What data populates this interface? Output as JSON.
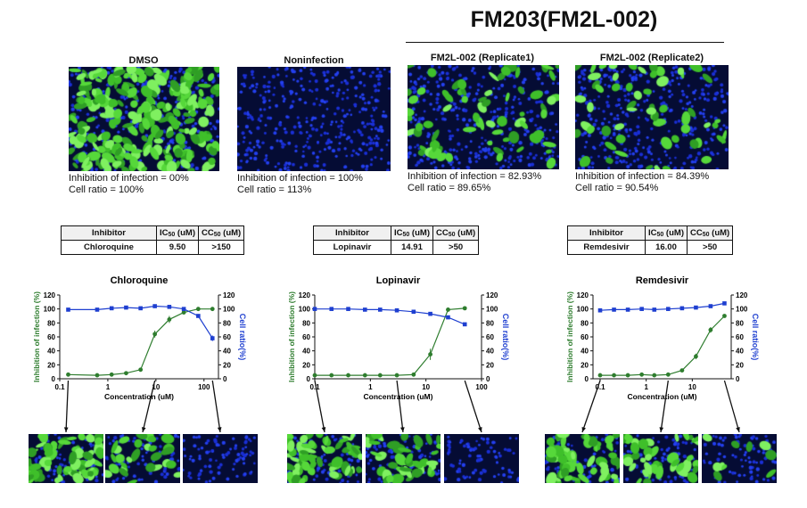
{
  "header": {
    "title": "FM203(FM2L-002)"
  },
  "panels": [
    {
      "title": "DMSO",
      "caption1": "Inhibition of infection = 00%",
      "caption2": "Cell ratio = 100%",
      "green": 0.78
    },
    {
      "title": "Noninfection",
      "caption1": "Inhibition of infection = 100%",
      "caption2": "Cell ratio = 113%",
      "green": 0.0
    },
    {
      "title": "FM2L-002 (Replicate1)",
      "caption1": "Inhibition of infection = 82.93%",
      "caption2": "Cell ratio = 89.65%",
      "green": 0.2
    },
    {
      "title": "FM2L-002 (Replicate2)",
      "caption1": "Inhibition of infection = 84.39%",
      "caption2": "Cell ratio = 90.54%",
      "green": 0.17
    }
  ],
  "tables": [
    {
      "h1": "Inhibitor",
      "h2a": "IC",
      "h2s": "50",
      "h2b": " (uM)",
      "h3a": "CC",
      "h3s": "50",
      "h3b": " (uM)",
      "name": "Chloroquine",
      "ic50": "9.50",
      "cc50": ">150"
    },
    {
      "h1": "Inhibitor",
      "h2a": "IC",
      "h2s": "50",
      "h2b": " (uM)",
      "h3a": "CC",
      "h3s": "50",
      "h3b": " (uM)",
      "name": "Lopinavir",
      "ic50": "14.91",
      "cc50": ">50"
    },
    {
      "h1": "Inhibitor",
      "h2a": "IC",
      "h2s": "50",
      "h2b": " (uM)",
      "h3a": "CC",
      "h3s": "50",
      "h3b": " (uM)",
      "name": "Remdesivir",
      "ic50": "16.00",
      "cc50": ">50"
    }
  ],
  "chart_data": [
    {
      "type": "line",
      "title": "Chloroquine",
      "xlabel": "Concentration (uM)",
      "ylabel_left": "Inhibition of infection (%)",
      "ylabel_right": "Cell ratio(%)",
      "x_scale": "log",
      "xlim": [
        0.1,
        200
      ],
      "xticks": [
        0.1,
        1,
        10,
        100
      ],
      "xticklabels": [
        "0.1",
        "1",
        "10",
        "100"
      ],
      "ylim": [
        0,
        120
      ],
      "yticks": [
        0,
        20,
        40,
        60,
        80,
        100,
        120
      ],
      "colors": {
        "inhibition": "#2e7d2e",
        "cell_ratio": "#1e3fd0"
      },
      "series": [
        {
          "name": "Inhibition of infection (%)",
          "axis": "left",
          "x": [
            0.15,
            0.6,
            1.2,
            2.4,
            4.8,
            9.5,
            19,
            38,
            76,
            150
          ],
          "values": [
            6,
            5,
            6,
            8,
            13,
            64,
            85,
            95,
            100,
            100
          ],
          "errors": [
            0,
            0,
            0,
            0,
            0,
            5,
            5,
            0,
            0,
            0
          ]
        },
        {
          "name": "Cell ratio(%)",
          "axis": "right",
          "x": [
            0.15,
            0.6,
            1.2,
            2.4,
            4.8,
            9.5,
            19,
            38,
            76,
            150
          ],
          "values": [
            99,
            99,
            101,
            102,
            101,
            104,
            103,
            100,
            90,
            58
          ],
          "errors": [
            1,
            0,
            1,
            0,
            1,
            1,
            1,
            1,
            2,
            4
          ]
        }
      ],
      "thumb_green": [
        0.8,
        0.35,
        0.0
      ]
    },
    {
      "type": "line",
      "title": "Lopinavir",
      "xlabel": "Concentration (uM)",
      "ylabel_left": "Inhibition of infection (%)",
      "ylabel_right": "Cell ratio(%)",
      "x_scale": "log",
      "xlim": [
        0.1,
        100
      ],
      "xticks": [
        0.1,
        1,
        10,
        100
      ],
      "xticklabels": [
        "0.1",
        "1",
        "10",
        "100"
      ],
      "ylim": [
        0,
        120
      ],
      "yticks": [
        0,
        20,
        40,
        60,
        80,
        100,
        120
      ],
      "colors": {
        "inhibition": "#2e7d2e",
        "cell_ratio": "#1e3fd0"
      },
      "series": [
        {
          "name": "Inhibition of infection (%)",
          "axis": "left",
          "x": [
            0.1,
            0.2,
            0.4,
            0.8,
            1.5,
            3,
            6,
            12,
            25,
            50
          ],
          "values": [
            5,
            5,
            5,
            5,
            5,
            5,
            6,
            35,
            99,
            101
          ],
          "errors": [
            0,
            0,
            0,
            0,
            0,
            0,
            0,
            8,
            0,
            0
          ]
        },
        {
          "name": "Cell ratio(%)",
          "axis": "right",
          "x": [
            0.1,
            0.2,
            0.4,
            0.8,
            1.5,
            3,
            6,
            12,
            25,
            50
          ],
          "values": [
            100,
            100,
            100,
            99,
            99,
            98,
            96,
            93,
            88,
            78
          ],
          "errors": [
            0,
            0,
            0,
            0,
            0,
            0,
            0,
            1,
            1,
            2
          ]
        }
      ],
      "thumb_green": [
        0.8,
        0.55,
        0.0
      ]
    },
    {
      "type": "line",
      "title": "Remdesivir",
      "xlabel": "Concentration (uM)",
      "ylabel_left": "Inhibition of infection (%)",
      "ylabel_right": "Cell ratio(%)",
      "x_scale": "log",
      "xlim": [
        0.07,
        70
      ],
      "xticks": [
        0.1,
        1,
        10
      ],
      "xticklabels": [
        "0.1",
        "1",
        "10"
      ],
      "ylim": [
        0,
        120
      ],
      "yticks": [
        0,
        20,
        40,
        60,
        80,
        100,
        120
      ],
      "colors": {
        "inhibition": "#2e7d2e",
        "cell_ratio": "#1e3fd0"
      },
      "series": [
        {
          "name": "Inhibition of infection (%)",
          "axis": "left",
          "x": [
            0.1,
            0.2,
            0.4,
            0.8,
            1.5,
            3,
            6,
            12,
            25,
            50
          ],
          "values": [
            5,
            5,
            5,
            6,
            5,
            6,
            12,
            32,
            70,
            90
          ],
          "errors": [
            0,
            0,
            0,
            0,
            0,
            0,
            0,
            4,
            4,
            0
          ]
        },
        {
          "name": "Cell ratio(%)",
          "axis": "right",
          "x": [
            0.1,
            0.2,
            0.4,
            0.8,
            1.5,
            3,
            6,
            12,
            25,
            50
          ],
          "values": [
            98,
            99,
            99,
            100,
            99,
            100,
            101,
            102,
            104,
            108
          ],
          "errors": [
            0,
            0,
            0,
            0,
            0,
            0,
            0,
            0,
            1,
            1
          ]
        }
      ],
      "thumb_green": [
        0.8,
        0.5,
        0.12
      ]
    }
  ]
}
